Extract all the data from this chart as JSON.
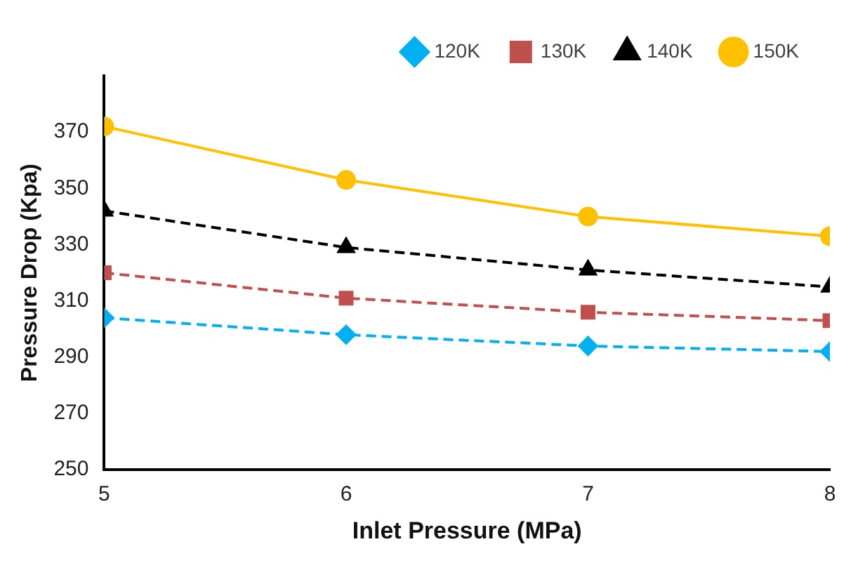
{
  "chart_data": {
    "type": "line",
    "xlabel": "Inlet Pressure (MPa)",
    "ylabel": "Pressure Drop (Kpa)",
    "x": [
      5,
      6,
      7,
      8
    ],
    "series": [
      {
        "name": "120K",
        "color": "#00b0f0",
        "values": [
          304,
          298,
          294,
          292
        ],
        "marker": "diamond",
        "line_style": "dashed"
      },
      {
        "name": "130K",
        "color": "#c0504d",
        "values": [
          320,
          311,
          306,
          303
        ],
        "marker": "square",
        "line_style": "dashed"
      },
      {
        "name": "140K",
        "color": "#000000",
        "values": [
          342,
          329,
          321,
          315
        ],
        "marker": "triangle",
        "line_style": "dashed"
      },
      {
        "name": "150K",
        "color": "#ffc000",
        "values": [
          372,
          353,
          340,
          333
        ],
        "marker": "circle",
        "line_style": "solid"
      }
    ],
    "xlim": [
      5,
      8
    ],
    "xticks": [
      5,
      6,
      7,
      8
    ],
    "ylim": [
      250,
      390
    ],
    "yticks": [
      250,
      270,
      290,
      310,
      330,
      350,
      370
    ],
    "grid": false,
    "legend": "top right"
  }
}
